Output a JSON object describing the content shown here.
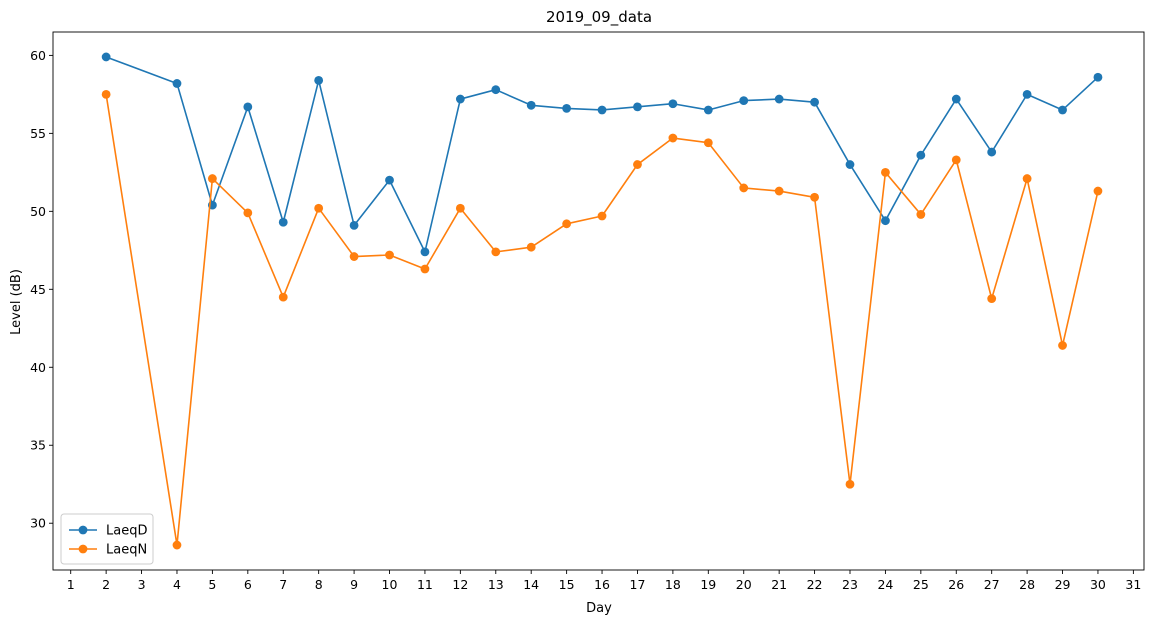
{
  "chart_data": {
    "type": "line",
    "title": "2019_09_data",
    "xlabel": "Day",
    "ylabel": "Level (dB)",
    "xlim": [
      0.5,
      31.3
    ],
    "ylim": [
      27.0,
      61.5
    ],
    "x_ticks": [
      1,
      2,
      3,
      4,
      5,
      6,
      7,
      8,
      9,
      10,
      11,
      12,
      13,
      14,
      15,
      16,
      17,
      18,
      19,
      20,
      21,
      22,
      23,
      24,
      25,
      26,
      27,
      28,
      29,
      30,
      31
    ],
    "y_ticks": [
      30,
      35,
      40,
      45,
      50,
      55,
      60
    ],
    "grid": false,
    "legend_position": "lower-left",
    "series": [
      {
        "name": "LaeqD",
        "color": "#1f77b4",
        "x": [
          2,
          4,
          5,
          6,
          7,
          8,
          9,
          10,
          11,
          12,
          13,
          14,
          15,
          16,
          17,
          18,
          19,
          20,
          21,
          22,
          23,
          24,
          25,
          26,
          27,
          28,
          29,
          30
        ],
        "values": [
          59.9,
          58.2,
          50.4,
          56.7,
          49.3,
          58.4,
          49.1,
          52.0,
          47.4,
          57.2,
          57.8,
          56.8,
          56.6,
          56.5,
          56.7,
          56.9,
          56.5,
          57.1,
          57.2,
          57.0,
          53.0,
          49.4,
          53.6,
          57.2,
          53.8,
          57.5,
          56.5,
          58.6
        ]
      },
      {
        "name": "LaeqN",
        "color": "#ff7f0e",
        "x": [
          2,
          4,
          5,
          6,
          7,
          8,
          9,
          10,
          11,
          12,
          13,
          14,
          15,
          16,
          17,
          18,
          19,
          20,
          21,
          22,
          23,
          24,
          25,
          26,
          27,
          28,
          29,
          30
        ],
        "values": [
          57.5,
          28.6,
          52.1,
          49.9,
          44.5,
          50.2,
          47.1,
          47.2,
          46.3,
          50.2,
          47.4,
          47.7,
          49.2,
          49.7,
          53.0,
          54.7,
          54.4,
          51.5,
          51.3,
          50.9,
          32.5,
          52.5,
          49.8,
          53.3,
          44.4,
          52.1,
          41.4,
          51.3
        ]
      }
    ]
  }
}
